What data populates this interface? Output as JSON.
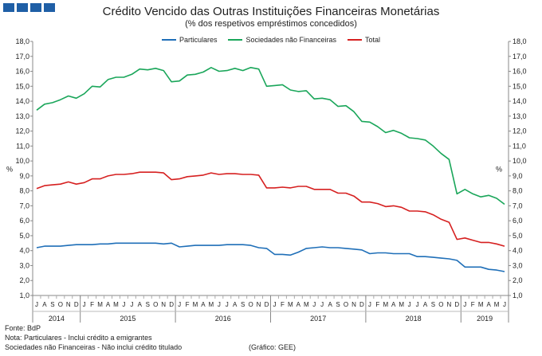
{
  "header": {
    "title": "Crédito Vencido das Outras Instituições Financeiras Monetárias",
    "subtitle": "(% dos respetivos empréstimos concedidos)"
  },
  "footer": {
    "source": "Fonte: BdP",
    "note1": "Nota: Particulares - Inclui crédito a emigrantes",
    "note2": "Sociedades não Financeiras - Não inclui crédito titulado",
    "credit": "(Gráfico: GEE)"
  },
  "logo": {
    "color": "#1f5fa6"
  },
  "chart_data": {
    "type": "line",
    "ylabel_left": "%",
    "ylabel_right": "%",
    "ylim": [
      1.0,
      18.0
    ],
    "y_ticks": [
      "1,0",
      "2,0",
      "3,0",
      "4,0",
      "5,0",
      "6,0",
      "7,0",
      "8,0",
      "9,0",
      "10,0",
      "11,0",
      "12,0",
      "13,0",
      "14,0",
      "15,0",
      "16,0",
      "17,0",
      "18,0"
    ],
    "grid": "none",
    "legend_position": "top-center",
    "months": [
      "J",
      "A",
      "S",
      "O",
      "N",
      "D",
      "J",
      "F",
      "M",
      "A",
      "M",
      "J",
      "J",
      "A",
      "S",
      "O",
      "N",
      "D",
      "J",
      "F",
      "M",
      "A",
      "M",
      "J",
      "J",
      "A",
      "S",
      "O",
      "N",
      "D",
      "J",
      "F",
      "M",
      "A",
      "M",
      "J",
      "J",
      "A",
      "S",
      "O",
      "N",
      "D",
      "J",
      "F",
      "M",
      "A",
      "M",
      "J",
      "J",
      "A",
      "S",
      "O",
      "N",
      "D",
      "J",
      "F",
      "M",
      "A",
      "M",
      "J"
    ],
    "years": [
      {
        "label": "2014",
        "months": 6
      },
      {
        "label": "2015",
        "months": 12
      },
      {
        "label": "2016",
        "months": 12
      },
      {
        "label": "2017",
        "months": 12
      },
      {
        "label": "2018",
        "months": 12
      },
      {
        "label": "2019",
        "months": 6
      }
    ],
    "series": [
      {
        "name": "Particulares",
        "color": "#1f6fb8",
        "values": [
          4.2,
          4.3,
          4.3,
          4.3,
          4.35,
          4.4,
          4.4,
          4.4,
          4.45,
          4.45,
          4.5,
          4.5,
          4.5,
          4.5,
          4.5,
          4.5,
          4.45,
          4.5,
          4.25,
          4.3,
          4.35,
          4.35,
          4.35,
          4.35,
          4.4,
          4.4,
          4.4,
          4.35,
          4.2,
          4.15,
          3.75,
          3.75,
          3.7,
          3.9,
          4.15,
          4.2,
          4.25,
          4.2,
          4.2,
          4.15,
          4.1,
          4.05,
          3.8,
          3.85,
          3.85,
          3.8,
          3.8,
          3.8,
          3.6,
          3.6,
          3.55,
          3.5,
          3.45,
          3.35,
          2.9,
          2.9,
          2.9,
          2.75,
          2.7,
          2.6
        ]
      },
      {
        "name": "Sociedades  não Financeiras",
        "color": "#1aa65a",
        "values": [
          13.4,
          13.8,
          13.9,
          14.1,
          14.35,
          14.2,
          14.5,
          15.0,
          14.95,
          15.45,
          15.6,
          15.6,
          15.8,
          16.15,
          16.1,
          16.2,
          16.05,
          15.3,
          15.35,
          15.75,
          15.8,
          15.95,
          16.25,
          16.0,
          16.05,
          16.2,
          16.05,
          16.25,
          16.15,
          15.0,
          15.05,
          15.1,
          14.75,
          14.65,
          14.7,
          14.15,
          14.2,
          14.1,
          13.65,
          13.7,
          13.3,
          12.65,
          12.6,
          12.3,
          11.9,
          12.05,
          11.85,
          11.55,
          11.5,
          11.4,
          11.0,
          10.5,
          10.1,
          7.8,
          8.1,
          7.8,
          7.6,
          7.7,
          7.5,
          7.1
        ]
      },
      {
        "name": "Total",
        "color": "#d62020",
        "values": [
          8.15,
          8.35,
          8.4,
          8.45,
          8.6,
          8.45,
          8.55,
          8.8,
          8.8,
          9.0,
          9.1,
          9.1,
          9.15,
          9.25,
          9.25,
          9.25,
          9.2,
          8.75,
          8.8,
          8.95,
          9.0,
          9.05,
          9.2,
          9.1,
          9.15,
          9.15,
          9.1,
          9.1,
          9.05,
          8.2,
          8.2,
          8.25,
          8.2,
          8.3,
          8.3,
          8.1,
          8.1,
          8.1,
          7.85,
          7.85,
          7.65,
          7.25,
          7.25,
          7.15,
          6.95,
          7.0,
          6.9,
          6.65,
          6.65,
          6.6,
          6.4,
          6.1,
          5.9,
          4.75,
          4.85,
          4.7,
          4.55,
          4.55,
          4.45,
          4.3
        ]
      }
    ]
  }
}
